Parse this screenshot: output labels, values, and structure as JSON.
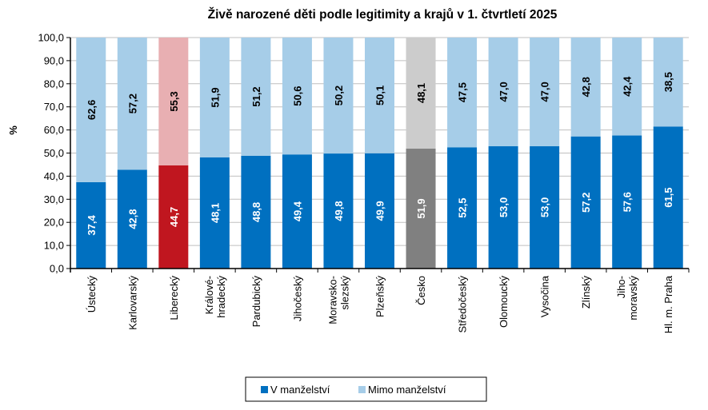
{
  "chart_data": {
    "type": "bar",
    "stacked": true,
    "title": "Živě narozené děti podle legitimity a krajů v 1. čtvrtletí 2025",
    "ylabel": "%",
    "xlabel": "",
    "ylim": [
      0,
      100
    ],
    "yticks": [
      "0,0",
      "10,0",
      "20,0",
      "30,0",
      "40,0",
      "50,0",
      "60,0",
      "70,0",
      "80,0",
      "90,0",
      "100,0"
    ],
    "grid": true,
    "legend_position": "bottom",
    "categories": [
      [
        "Ústecký"
      ],
      [
        "Karlovarský"
      ],
      [
        "Liberecký"
      ],
      [
        "Králové-",
        "hradecký"
      ],
      [
        "Pardubický"
      ],
      [
        "Jihočeský"
      ],
      [
        "Moravsko-",
        "slezský"
      ],
      [
        "Plzeňský"
      ],
      [
        "Česko"
      ],
      [
        "Středočeský"
      ],
      [
        "Olomoucký"
      ],
      [
        "Vysočina"
      ],
      [
        "Zlínský"
      ],
      [
        "Jiho-",
        "moravský"
      ],
      [
        "Hl. m. Praha"
      ]
    ],
    "series": [
      {
        "name": "V manželství",
        "color": "#0070c0",
        "values": [
          37.4,
          42.8,
          44.7,
          48.1,
          48.8,
          49.4,
          49.8,
          49.9,
          51.9,
          52.5,
          53.0,
          53.0,
          57.2,
          57.6,
          61.5
        ],
        "labels": [
          "37,4",
          "42,8",
          "44,7",
          "48,1",
          "48,8",
          "49,4",
          "49,8",
          "49,9",
          "51,9",
          "52,5",
          "53,0",
          "53,0",
          "57,2",
          "57,6",
          "61,5"
        ]
      },
      {
        "name": "Mimo manželství",
        "color": "#a6cde8",
        "values": [
          62.6,
          57.2,
          55.3,
          51.9,
          51.2,
          50.6,
          50.2,
          50.1,
          48.1,
          47.5,
          47.0,
          47.0,
          42.8,
          42.4,
          38.5
        ],
        "labels": [
          "62,6",
          "57,2",
          "55,3",
          "51,9",
          "51,2",
          "50,6",
          "50,2",
          "50,1",
          "48,1",
          "47,5",
          "47,0",
          "47,0",
          "42,8",
          "42,4",
          "38,5"
        ]
      }
    ],
    "highlight": {
      "Liberecký": {
        "V manželství": "#c0161f",
        "Mimo manželství": "#e8afb2"
      },
      "Česko": {
        "V manželství": "#808080",
        "Mimo manželství": "#cccccc"
      }
    }
  }
}
